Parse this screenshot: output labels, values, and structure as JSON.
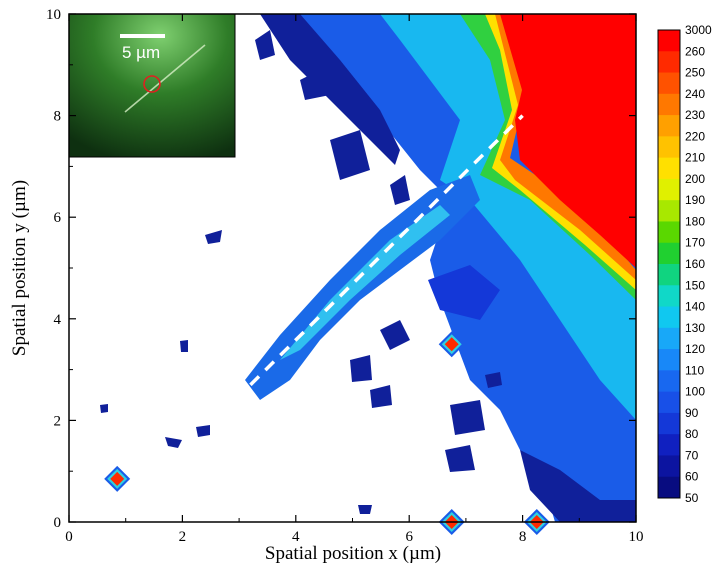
{
  "chart_data": {
    "type": "heatmap",
    "title": "",
    "xlabel": "Spatial position x (µm)",
    "ylabel": "Spatial position y (µm)",
    "xlim": [
      0,
      10
    ],
    "ylim": [
      0,
      10
    ],
    "x_ticks": [
      "0",
      "2",
      "4",
      "6",
      "8",
      "10"
    ],
    "y_ticks": [
      "0",
      "2",
      "4",
      "6",
      "8",
      "10"
    ],
    "colorbar": {
      "labels": [
        "3000",
        "260",
        "250",
        "240",
        "230",
        "220",
        "210",
        "200",
        "190",
        "180",
        "170",
        "160",
        "150",
        "140",
        "130",
        "120",
        "110",
        "100",
        "90",
        "80",
        "70",
        "60",
        "50"
      ],
      "colors": [
        "#ff0000",
        "#ff2a00",
        "#ff5200",
        "#ff7800",
        "#ffa000",
        "#ffc200",
        "#ffe000",
        "#e0f000",
        "#a8e800",
        "#5ad800",
        "#20d030",
        "#10d480",
        "#10d8c8",
        "#10c8f0",
        "#18a8f8",
        "#1888f8",
        "#1868f0",
        "#1850e8",
        "#1438d8",
        "#1020c0",
        "#0c14a0",
        "#080c80",
        "#040060"
      ]
    },
    "overlay_line": {
      "style": "dashed",
      "color": "#ffffff",
      "x": [
        3.2,
        8.0
      ],
      "y": [
        2.7,
        8.0
      ]
    },
    "point_markers": [
      {
        "x": 0.85,
        "y": 0.85
      },
      {
        "x": 6.75,
        "y": 3.5
      },
      {
        "x": 6.75,
        "y": 0.0
      },
      {
        "x": 8.25,
        "y": 0.0
      }
    ]
  },
  "inset": {
    "scale_bar_label": "5 µm"
  }
}
